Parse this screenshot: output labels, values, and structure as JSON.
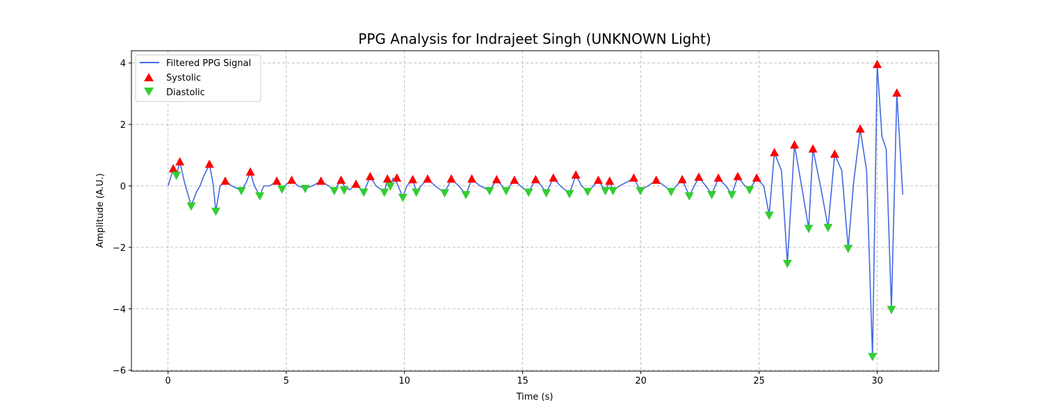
{
  "chart_data": {
    "type": "line",
    "title": "PPG Analysis for Indrajeet Singh (UNKNOWN Light)",
    "xlabel": "Time (s)",
    "ylabel": "Amplitude (A.U.)",
    "xlim": [
      -1.55,
      32.6
    ],
    "ylim": [
      -6.03,
      4.4
    ],
    "x_ticks": [
      0,
      5,
      10,
      15,
      20,
      25,
      30
    ],
    "y_ticks": [
      -6,
      -4,
      -2,
      0,
      2,
      4
    ],
    "x_tick_labels": [
      "0",
      "5",
      "10",
      "15",
      "20",
      "25",
      "30"
    ],
    "y_tick_labels": [
      "−6",
      "−4",
      "−2",
      "0",
      "2",
      "4"
    ],
    "grid": true,
    "legend_position": "top-left",
    "legend": [
      "Filtered PPG Signal",
      "Systolic",
      "Diastolic"
    ],
    "colors": {
      "signal": "#4169e1",
      "systolic": "#ff0000",
      "diastolic": "#32cd32",
      "grid": "#b0b0b0"
    },
    "series": [
      {
        "name": "Filtered PPG Signal",
        "kind": "line",
        "x": [
          0,
          0.22,
          0.35,
          0.5,
          0.7,
          0.98,
          1.2,
          1.35,
          1.5,
          1.75,
          1.9,
          2.02,
          2.2,
          2.42,
          2.7,
          3.1,
          3.3,
          3.48,
          3.65,
          3.88,
          4.05,
          4.3,
          4.6,
          4.82,
          5.0,
          5.23,
          5.5,
          5.8,
          6.1,
          6.47,
          6.8,
          7.03,
          7.32,
          7.45,
          7.68,
          7.95,
          8.28,
          8.55,
          8.8,
          9.15,
          9.28,
          9.4,
          9.52,
          9.68,
          9.93,
          10.1,
          10.35,
          10.5,
          10.7,
          10.98,
          11.3,
          11.7,
          11.98,
          12.3,
          12.6,
          12.85,
          13.2,
          13.6,
          13.9,
          14.3,
          14.65,
          14.9,
          15.25,
          15.55,
          15.8,
          16.0,
          16.3,
          16.6,
          16.98,
          17.25,
          17.5,
          17.75,
          18.0,
          18.2,
          18.5,
          18.68,
          18.82,
          19.1,
          19.35,
          19.7,
          19.98,
          20.3,
          20.65,
          21.0,
          21.28,
          21.75,
          22.05,
          22.45,
          22.75,
          23.0,
          23.28,
          23.6,
          23.85,
          24.1,
          24.4,
          24.6,
          24.9,
          25.2,
          25.43,
          25.65,
          25.95,
          26.2,
          26.5,
          26.8,
          27.1,
          27.28,
          27.6,
          27.92,
          28.2,
          28.5,
          28.77,
          29.0,
          29.28,
          29.55,
          29.8,
          30.0,
          30.2,
          30.38,
          30.6,
          30.83,
          31.08
        ],
        "y": [
          0.0,
          0.55,
          0.35,
          0.78,
          0.1,
          -0.65,
          -0.2,
          0.0,
          0.3,
          0.7,
          0.1,
          -0.82,
          0.0,
          0.15,
          0.0,
          -0.15,
          0.1,
          0.45,
          0.0,
          -0.32,
          0.0,
          0.0,
          0.15,
          -0.1,
          0.05,
          0.18,
          0.0,
          -0.08,
          0.0,
          0.15,
          0.0,
          -0.15,
          0.18,
          0.0,
          -0.13,
          0.05,
          -0.2,
          0.3,
          0.0,
          -0.2,
          0.22,
          0.0,
          0.25,
          0.1,
          -0.37,
          0.0,
          0.2,
          -0.2,
          0.0,
          0.22,
          0.0,
          -0.22,
          0.22,
          0.0,
          -0.28,
          0.22,
          0.0,
          -0.15,
          0.2,
          -0.15,
          0.18,
          0.0,
          -0.2,
          0.2,
          0.0,
          -0.22,
          0.25,
          0.0,
          -0.25,
          0.35,
          0.0,
          -0.18,
          0.0,
          0.18,
          -0.15,
          0.15,
          -0.15,
          0.0,
          0.1,
          0.25,
          -0.15,
          0.0,
          0.18,
          0.0,
          -0.18,
          0.2,
          -0.32,
          0.28,
          0.0,
          -0.28,
          0.25,
          0.0,
          -0.28,
          0.3,
          0.0,
          -0.12,
          0.25,
          0.0,
          -0.95,
          1.08,
          0.5,
          -2.52,
          1.33,
          0.0,
          -1.38,
          1.2,
          0.0,
          -1.35,
          1.03,
          0.5,
          -2.03,
          0.1,
          1.85,
          0.5,
          -5.55,
          3.95,
          1.6,
          1.2,
          -4.02,
          3.02,
          -0.28
        ]
      },
      {
        "name": "Systolic",
        "kind": "marker",
        "marker": "triangle-up",
        "x": [
          0.22,
          0.5,
          1.75,
          2.42,
          3.48,
          4.6,
          5.23,
          6.47,
          7.32,
          7.95,
          8.55,
          9.28,
          9.68,
          10.35,
          10.98,
          11.98,
          12.85,
          13.9,
          14.65,
          15.55,
          16.3,
          17.25,
          18.2,
          18.68,
          19.7,
          20.65,
          21.75,
          22.45,
          23.28,
          24.1,
          24.9,
          25.65,
          26.5,
          27.28,
          28.2,
          29.28,
          30.0,
          30.83
        ],
        "y": [
          0.55,
          0.78,
          0.7,
          0.15,
          0.45,
          0.15,
          0.18,
          0.15,
          0.18,
          0.05,
          0.3,
          0.22,
          0.25,
          0.2,
          0.22,
          0.22,
          0.22,
          0.2,
          0.18,
          0.2,
          0.25,
          0.35,
          0.18,
          0.15,
          0.25,
          0.18,
          0.2,
          0.28,
          0.25,
          0.3,
          0.25,
          1.08,
          1.33,
          1.2,
          1.03,
          1.85,
          3.95,
          3.02
        ]
      },
      {
        "name": "Diastolic",
        "kind": "marker",
        "marker": "triangle-down",
        "x": [
          0.35,
          0.98,
          2.02,
          3.1,
          3.88,
          4.82,
          5.8,
          7.03,
          7.45,
          8.28,
          9.15,
          9.4,
          9.93,
          10.5,
          11.7,
          12.6,
          13.6,
          14.3,
          15.25,
          16.0,
          16.98,
          17.75,
          18.5,
          18.82,
          19.98,
          21.28,
          22.05,
          23.0,
          23.85,
          24.6,
          25.43,
          26.2,
          27.1,
          27.92,
          28.77,
          29.8,
          30.6
        ],
        "y": [
          0.35,
          -0.65,
          -0.82,
          -0.15,
          -0.32,
          -0.1,
          -0.08,
          -0.15,
          -0.13,
          -0.2,
          -0.2,
          0.0,
          -0.37,
          -0.2,
          -0.22,
          -0.28,
          -0.15,
          -0.15,
          -0.2,
          -0.22,
          -0.25,
          -0.18,
          -0.15,
          -0.15,
          -0.15,
          -0.18,
          -0.32,
          -0.28,
          -0.28,
          -0.12,
          -0.95,
          -2.52,
          -1.38,
          -1.35,
          -2.03,
          -5.55,
          -4.02
        ]
      }
    ]
  }
}
